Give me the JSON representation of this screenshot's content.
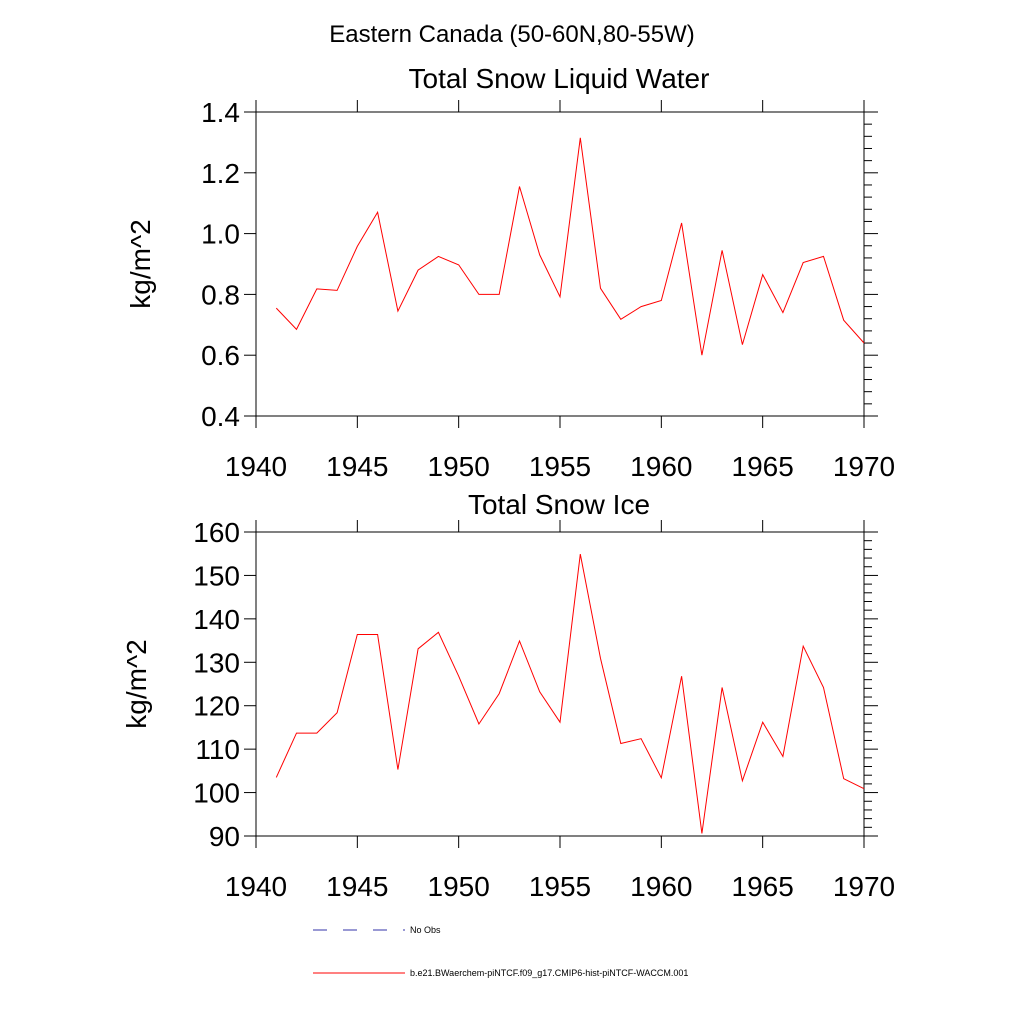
{
  "figure_title": "Eastern Canada (50-60N,80-55W)",
  "chart_data": [
    {
      "type": "line",
      "title": "Total Snow Liquid Water",
      "xlabel": "",
      "ylabel": "kg/m^2",
      "xlim": [
        1940,
        1970
      ],
      "ylim": [
        0.4,
        1.4
      ],
      "x_ticks": [
        1940,
        1945,
        1950,
        1955,
        1960,
        1965,
        1970
      ],
      "y_ticks": [
        0.4,
        0.6,
        0.8,
        1.0,
        1.2,
        1.4
      ],
      "y_tick_labels": [
        "0.4",
        "0.6",
        "0.8",
        "1.0",
        "1.2",
        "1.4"
      ],
      "grid": false,
      "series": [
        {
          "name": "b.e21.BWaerchem-piNTCF.f09_g17.CMIP6-hist-piNTCF-WACCM.001",
          "color": "#ff0000",
          "x": [
            1941,
            1942,
            1943,
            1944,
            1945,
            1946,
            1947,
            1948,
            1949,
            1950,
            1951,
            1952,
            1953,
            1954,
            1955,
            1956,
            1957,
            1958,
            1959,
            1960,
            1961,
            1962,
            1963,
            1964,
            1965,
            1966,
            1967,
            1968,
            1969,
            1970
          ],
          "values": [
            0.755,
            0.685,
            0.818,
            0.813,
            0.958,
            1.07,
            0.745,
            0.88,
            0.925,
            0.897,
            0.8,
            0.8,
            1.155,
            0.93,
            0.792,
            1.315,
            0.82,
            0.718,
            0.76,
            0.78,
            1.035,
            0.6,
            0.945,
            0.635,
            0.865,
            0.74,
            0.905,
            0.925,
            0.715,
            0.64
          ]
        }
      ]
    },
    {
      "type": "line",
      "title": "Total Snow Ice",
      "xlabel": "",
      "ylabel": "kg/m^2",
      "xlim": [
        1940,
        1970
      ],
      "ylim": [
        90,
        160
      ],
      "x_ticks": [
        1940,
        1945,
        1950,
        1955,
        1960,
        1965,
        1970
      ],
      "y_ticks": [
        90,
        100,
        110,
        120,
        130,
        140,
        150,
        160
      ],
      "y_tick_labels": [
        "90",
        "100",
        "110",
        "120",
        "130",
        "140",
        "150",
        "160"
      ],
      "grid": false,
      "series": [
        {
          "name": "b.e21.BWaerchem-piNTCF.f09_g17.CMIP6-hist-piNTCF-WACCM.001",
          "color": "#ff0000",
          "x": [
            1941,
            1942,
            1943,
            1944,
            1945,
            1946,
            1947,
            1948,
            1949,
            1950,
            1951,
            1952,
            1953,
            1954,
            1955,
            1956,
            1957,
            1958,
            1959,
            1960,
            1961,
            1962,
            1963,
            1964,
            1965,
            1966,
            1967,
            1968,
            1969,
            1970
          ],
          "values": [
            103.5,
            113.7,
            113.7,
            118.4,
            136.4,
            136.4,
            105.3,
            133.1,
            136.9,
            126.8,
            115.8,
            122.8,
            134.9,
            123.2,
            116.2,
            154.9,
            130.9,
            111.3,
            112.4,
            103.4,
            126.8,
            90.6,
            124.2,
            102.7,
            116.2,
            108.3,
            133.7,
            124.2,
            103.2,
            100.9
          ]
        }
      ]
    }
  ],
  "legend": {
    "placement": "bottom",
    "entries": [
      {
        "label": "No Obs",
        "color": "#3333aa",
        "dash": true
      },
      {
        "label": "b.e21.BWaerchem-piNTCF.f09_g17.CMIP6-hist-piNTCF-WACCM.001",
        "color": "#ff0000",
        "dash": false
      }
    ]
  }
}
